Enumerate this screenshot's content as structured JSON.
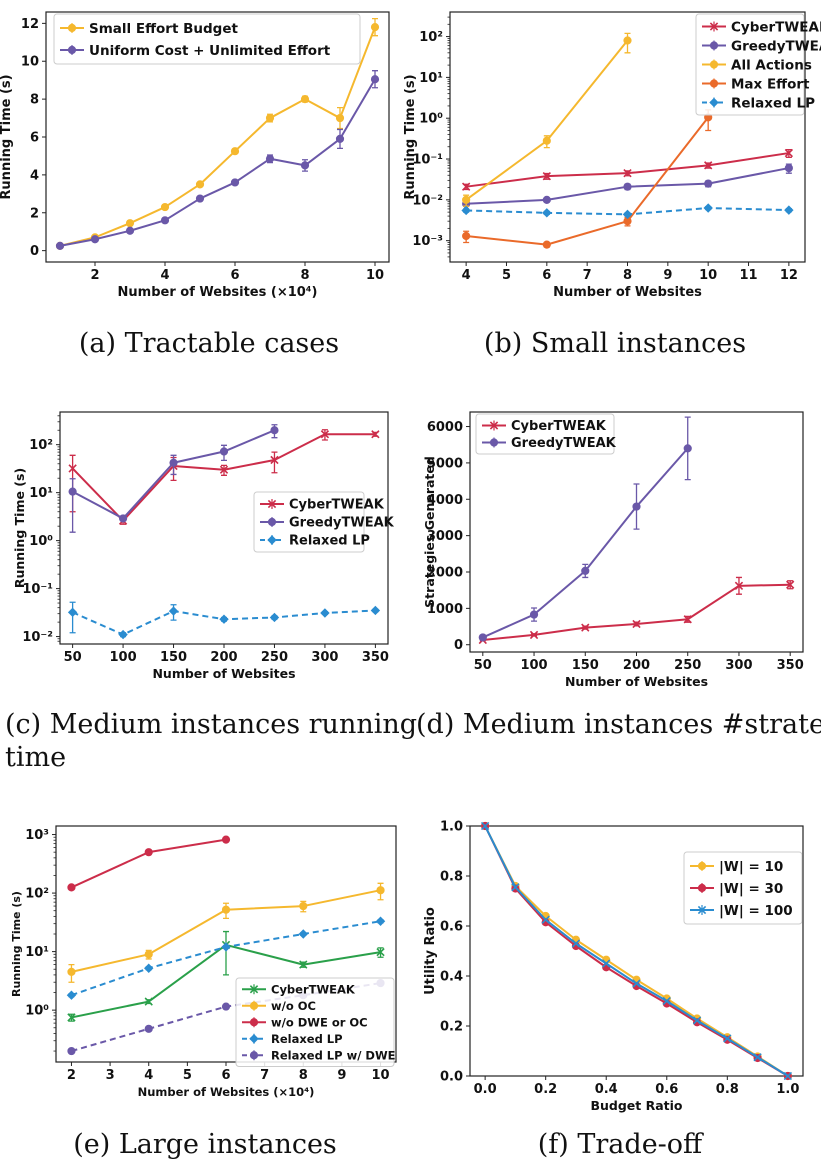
{
  "captions": {
    "a": "(a) Tractable cases",
    "b": "(b) Small instances",
    "c_line1": "(c)  Medium  instances  running",
    "c_line2": "time",
    "d": "(d) Medium instances #strategies",
    "e": "(e) Large instances",
    "f": "(f) Trade-off"
  },
  "chart_data": [
    {
      "id": "a",
      "type": "line",
      "title": "",
      "xlabel": "Number of Websites (×10⁴)",
      "ylabel": "Running Time (s)",
      "xscale": "linear",
      "yscale": "linear",
      "xlim": [
        0.6,
        10.4
      ],
      "ylim": [
        -0.6,
        12.6
      ],
      "xticks": [
        2,
        4,
        6,
        8,
        10
      ],
      "yticks": [
        0,
        2,
        4,
        6,
        8,
        10,
        12
      ],
      "legend": "upper-left",
      "series": [
        {
          "name": "Small Effort Budget",
          "color": "#f5b82e",
          "marker": "circle",
          "x": [
            1,
            2,
            3,
            4,
            5,
            6,
            7,
            8,
            9,
            10
          ],
          "values": [
            0.25,
            0.7,
            1.45,
            2.3,
            3.5,
            5.25,
            7.0,
            8.0,
            7.0,
            11.8
          ],
          "err": [
            0,
            0,
            0,
            0,
            0,
            0,
            0.2,
            0.15,
            0.55,
            0.45
          ]
        },
        {
          "name": "Uniform Cost + Unlimited Effort",
          "color": "#6a58a8",
          "marker": "circle",
          "x": [
            1,
            2,
            3,
            4,
            5,
            6,
            7,
            8,
            9,
            10
          ],
          "values": [
            0.25,
            0.6,
            1.05,
            1.6,
            2.75,
            3.6,
            4.85,
            4.5,
            5.9,
            9.05
          ],
          "err": [
            0,
            0,
            0,
            0,
            0,
            0,
            0.2,
            0.3,
            0.5,
            0.45
          ]
        }
      ]
    },
    {
      "id": "b",
      "type": "line",
      "title": "",
      "xlabel": "Number of Websites",
      "ylabel": "Running Time (s)",
      "xscale": "linear",
      "yscale": "log",
      "xlim": [
        3.6,
        12.4
      ],
      "ylim": [
        0.0003,
        400
      ],
      "xticks": [
        4,
        5,
        6,
        7,
        8,
        9,
        10,
        11,
        12
      ],
      "yticks": [
        0.001,
        0.01,
        0.1,
        1,
        10,
        100
      ],
      "yticklabels": [
        "10⁻³",
        "10⁻²",
        "10⁻¹",
        "10⁰",
        "10¹",
        "10²"
      ],
      "legend": "upper-right",
      "series": [
        {
          "name": "CyberTWEAK",
          "color": "#cc2d4a",
          "marker": "x",
          "x": [
            4,
            6,
            8,
            10,
            12
          ],
          "values": [
            0.021,
            0.038,
            0.045,
            0.07,
            0.14
          ],
          "err": [
            0.003,
            0.006,
            0.006,
            0.01,
            0.03
          ]
        },
        {
          "name": "GreedyTWEAK",
          "color": "#6a58a8",
          "marker": "circle",
          "x": [
            4,
            6,
            8,
            10,
            12
          ],
          "values": [
            0.008,
            0.01,
            0.021,
            0.025,
            0.06
          ],
          "err": [
            0.001,
            0.001,
            0.003,
            0.004,
            0.015
          ]
        },
        {
          "name": "All Actions",
          "color": "#f5b82e",
          "marker": "circle",
          "x": [
            4,
            6,
            8
          ],
          "values": [
            0.01,
            0.28,
            80
          ],
          "err": [
            0.003,
            0.09,
            40
          ]
        },
        {
          "name": "Max Effort",
          "color": "#ea6a2a",
          "marker": "circle",
          "x": [
            4,
            6,
            8,
            10
          ],
          "values": [
            0.0013,
            0.0008,
            0.003,
            1.05
          ],
          "err": [
            0.0004,
            0.0001,
            0.0007,
            0.55
          ]
        },
        {
          "name": "Relaxed LP",
          "color": "#2a8cd0",
          "marker": "diamond",
          "dashed": true,
          "x": [
            4,
            6,
            8,
            10,
            12
          ],
          "values": [
            0.0055,
            0.0048,
            0.0044,
            0.0063,
            0.0056
          ],
          "err": [
            0.0005,
            0.0004,
            0.0004,
            0.0005,
            0.0005
          ]
        }
      ]
    },
    {
      "id": "c",
      "type": "line",
      "title": "",
      "xlabel": "Number of Websites",
      "ylabel": "Running Time (s)",
      "xscale": "linear",
      "yscale": "log",
      "xlim": [
        37.5,
        362.5
      ],
      "ylim": [
        0.007,
        480
      ],
      "xticks": [
        50,
        100,
        150,
        200,
        250,
        300,
        350
      ],
      "yticks": [
        0.01,
        0.1,
        1,
        10,
        100
      ],
      "yticklabels": [
        "10⁻²",
        "10⁻¹",
        "10⁰",
        "10¹",
        "10²"
      ],
      "legend": "center-right",
      "series": [
        {
          "name": "CyberTWEAK",
          "color": "#cc2d4a",
          "marker": "x",
          "x": [
            50,
            100,
            150,
            200,
            250,
            300,
            350
          ],
          "values": [
            32,
            2.6,
            36,
            30,
            48,
            165,
            165
          ],
          "err": [
            28,
            0.4,
            18,
            7,
            22,
            40,
            15
          ]
        },
        {
          "name": "GreedyTWEAK",
          "color": "#6a58a8",
          "marker": "circle",
          "x": [
            50,
            100,
            150,
            200,
            250
          ],
          "values": [
            10.5,
            2.9,
            42,
            72,
            200
          ],
          "err": [
            9,
            0.3,
            18,
            25,
            60
          ]
        },
        {
          "name": "Relaxed LP",
          "color": "#2a8cd0",
          "marker": "diamond",
          "dashed": true,
          "x": [
            50,
            100,
            150,
            200,
            250,
            300,
            350
          ],
          "values": [
            0.032,
            0.011,
            0.034,
            0.023,
            0.025,
            0.031,
            0.035
          ],
          "err": [
            0.02,
            0.001,
            0.012,
            0.002,
            0.002,
            0.002,
            0.002
          ]
        }
      ]
    },
    {
      "id": "d",
      "type": "line",
      "title": "",
      "xlabel": "Number of Websites",
      "ylabel": "Strategies Generated",
      "xscale": "linear",
      "yscale": "linear",
      "xlim": [
        37.5,
        362.5
      ],
      "ylim": [
        -200,
        6400
      ],
      "xticks": [
        50,
        100,
        150,
        200,
        250,
        300,
        350
      ],
      "yticks": [
        0,
        1000,
        2000,
        3000,
        4000,
        5000,
        6000
      ],
      "legend": "upper-left",
      "series": [
        {
          "name": "CyberTWEAK",
          "color": "#cc2d4a",
          "marker": "x",
          "x": [
            50,
            100,
            150,
            200,
            250,
            300,
            350
          ],
          "values": [
            130,
            270,
            470,
            570,
            700,
            1620,
            1650
          ],
          "err": [
            20,
            30,
            40,
            50,
            80,
            230,
            110
          ]
        },
        {
          "name": "GreedyTWEAK",
          "color": "#6a58a8",
          "marker": "circle",
          "x": [
            50,
            100,
            150,
            200,
            250
          ],
          "values": [
            200,
            830,
            2030,
            3800,
            5400
          ],
          "err": [
            30,
            180,
            180,
            620,
            860
          ]
        }
      ]
    },
    {
      "id": "e",
      "type": "line",
      "title": "",
      "xlabel": "Number of Websites (×10⁴)",
      "ylabel": "Running Time (s)",
      "xscale": "linear",
      "yscale": "log",
      "xlim": [
        1.6,
        10.4
      ],
      "ylim": [
        0.13,
        1400
      ],
      "xticks": [
        2,
        3,
        4,
        5,
        6,
        7,
        8,
        9,
        10
      ],
      "yticks": [
        1,
        10,
        100,
        1000
      ],
      "yticklabels": [
        "10⁰",
        "10¹",
        "10²",
        "10³"
      ],
      "legend": "lower-right",
      "series": [
        {
          "name": "CyberTWEAK",
          "color": "#2aa04a",
          "marker": "x",
          "x": [
            2,
            4,
            6,
            8,
            10
          ],
          "values": [
            0.75,
            1.4,
            13,
            6,
            9.8
          ],
          "err": [
            0.1,
            0.1,
            9,
            0.6,
            1.8
          ]
        },
        {
          "name": "w/o OC",
          "color": "#f5b82e",
          "marker": "circle",
          "x": [
            2,
            4,
            6,
            8,
            10
          ],
          "values": [
            4.5,
            9,
            52,
            60,
            112
          ],
          "err": [
            1.5,
            1.5,
            15,
            12,
            35
          ]
        },
        {
          "name": "w/o DWE or OC",
          "color": "#cc2d4a",
          "marker": "circle",
          "x": [
            2,
            4,
            6
          ],
          "values": [
            125,
            500,
            820
          ],
          "err": [
            5,
            20,
            30
          ]
        },
        {
          "name": "Relaxed LP",
          "color": "#2a8cd0",
          "marker": "diamond",
          "dashed": true,
          "x": [
            2,
            4,
            6,
            8,
            10
          ],
          "values": [
            1.8,
            5.2,
            12,
            20,
            33
          ],
          "err": [
            0.1,
            0.3,
            0.6,
            1,
            2
          ]
        },
        {
          "name": "Relaxed LP w/ DWE",
          "color": "#6a58a8",
          "marker": "circle",
          "dashed": true,
          "x": [
            2,
            4,
            6,
            8,
            10
          ],
          "values": [
            0.2,
            0.48,
            1.15,
            1.8,
            2.9
          ],
          "err": [
            0.01,
            0.02,
            0.04,
            0.05,
            0.08
          ]
        }
      ]
    },
    {
      "id": "f",
      "type": "line",
      "title": "",
      "xlabel": "Budget Ratio",
      "ylabel": "Utility Ratio",
      "xscale": "linear",
      "yscale": "linear",
      "xlim": [
        -0.05,
        1.05
      ],
      "ylim": [
        0.0,
        1.0
      ],
      "xticks": [
        0.0,
        0.2,
        0.4,
        0.6,
        0.8,
        1.0
      ],
      "xticklabels": [
        "0.0",
        "0.2",
        "0.4",
        "0.6",
        "0.8",
        "1.0"
      ],
      "yticks": [
        0.0,
        0.2,
        0.4,
        0.6,
        0.8,
        1.0
      ],
      "yticklabels": [
        "0.0",
        "0.2",
        "0.4",
        "0.6",
        "0.8",
        "1.0"
      ],
      "legend": "upper-right",
      "series": [
        {
          "name": "|W| = 10",
          "color": "#f5b82e",
          "marker": "circle",
          "x": [
            0,
            0.1,
            0.2,
            0.3,
            0.4,
            0.5,
            0.6,
            0.7,
            0.8,
            0.9,
            1.0
          ],
          "values": [
            1.0,
            0.76,
            0.64,
            0.545,
            0.465,
            0.385,
            0.31,
            0.23,
            0.155,
            0.078,
            0.0
          ],
          "err": [
            0,
            0,
            0,
            0,
            0,
            0,
            0,
            0,
            0,
            0,
            0
          ]
        },
        {
          "name": "|W| = 30",
          "color": "#cc2d4a",
          "marker": "circle",
          "x": [
            0,
            0.1,
            0.2,
            0.3,
            0.4,
            0.5,
            0.6,
            0.7,
            0.8,
            0.9,
            1.0
          ],
          "values": [
            1.0,
            0.75,
            0.615,
            0.52,
            0.435,
            0.36,
            0.29,
            0.215,
            0.145,
            0.072,
            0.0
          ],
          "err": [
            0,
            0,
            0,
            0,
            0,
            0,
            0,
            0,
            0,
            0,
            0
          ]
        },
        {
          "name": "|W| = 100",
          "color": "#2a8cd0",
          "marker": "x",
          "x": [
            0,
            0.1,
            0.2,
            0.3,
            0.4,
            0.5,
            0.6,
            0.7,
            0.8,
            0.9,
            1.0
          ],
          "values": [
            1.0,
            0.755,
            0.625,
            0.53,
            0.45,
            0.37,
            0.3,
            0.222,
            0.15,
            0.075,
            0.0
          ],
          "err": [
            0,
            0,
            0,
            0,
            0,
            0,
            0,
            0,
            0,
            0,
            0
          ]
        }
      ]
    }
  ]
}
